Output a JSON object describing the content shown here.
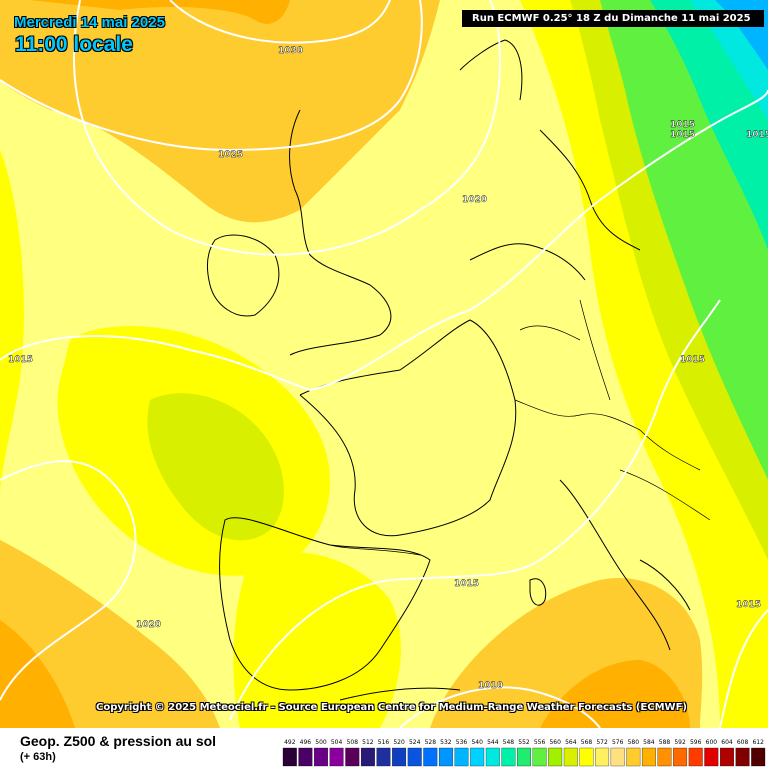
{
  "header": {
    "date": "Mercredi 14 mai 2025",
    "time": "11:00 locale",
    "run": "Run ECMWF 0.25° 18 Z du Dimanche 11 mai 2025"
  },
  "copyright": "Copyright © 2025 Meteociel.fr - Source European Centre for Medium-Range Weather Forecasts (ECMWF)",
  "footer": {
    "title": "Geop. Z500 & pression au sol",
    "subtitle": "(+ 63h)"
  },
  "isobars": [
    "1030",
    "1025",
    "1020",
    "1015",
    "1015",
    "1015",
    "1015",
    "1015",
    "1015",
    "1020",
    "1010",
    "1015"
  ],
  "legend": {
    "values": [
      "492",
      "496",
      "500",
      "504",
      "508",
      "512",
      "516",
      "520",
      "524",
      "528",
      "532",
      "536",
      "540",
      "544",
      "548",
      "552",
      "556",
      "560",
      "564",
      "568",
      "572",
      "576",
      "580",
      "584",
      "588",
      "592",
      "596",
      "600",
      "604",
      "608",
      "612"
    ],
    "colors": [
      "#2a0036",
      "#4b0066",
      "#6a0088",
      "#8a009e",
      "#5a005a",
      "#2a1a78",
      "#1f2fa0",
      "#1040c0",
      "#0a55e0",
      "#0072ff",
      "#0095ff",
      "#00b5ff",
      "#00d2ff",
      "#00e8e0",
      "#00f0a8",
      "#20ec70",
      "#60f040",
      "#a0f000",
      "#d8f000",
      "#ffff00",
      "#fff060",
      "#ffe080",
      "#ffcc30",
      "#ffb000",
      "#ff9000",
      "#ff6a00",
      "#ff3c00",
      "#e00000",
      "#b00000",
      "#800000",
      "#500000"
    ]
  },
  "colors": {
    "ocean_light": "#ffff80",
    "yellow": "#ffff00",
    "orange_light": "#ffcc30",
    "orange": "#ffb000",
    "green_yellow": "#d8f000",
    "green": "#60f040",
    "cyan": "#00e8e0",
    "title_cyan": "#00c8ff"
  }
}
